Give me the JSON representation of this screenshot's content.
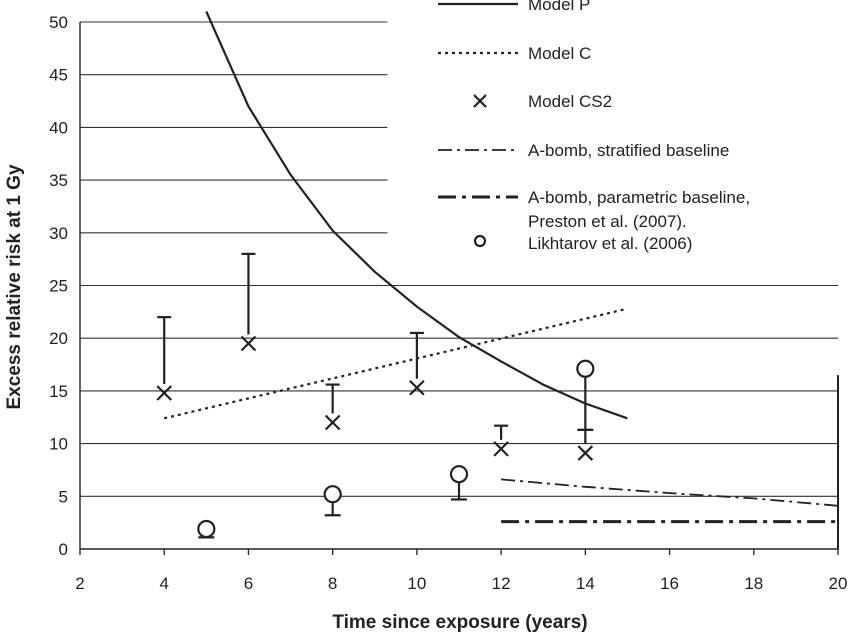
{
  "chart_data": {
    "type": "line",
    "xlabel": "Time since exposure (years)",
    "ylabel": "Excess relative risk at 1 Gy",
    "xlim": [
      2,
      20
    ],
    "ylim": [
      0,
      50
    ],
    "x_ticks": [
      2,
      4,
      6,
      8,
      10,
      12,
      14,
      16,
      18,
      20
    ],
    "y_ticks": [
      0,
      5,
      10,
      15,
      20,
      25,
      30,
      35,
      40,
      45,
      50
    ],
    "grid": "horizontal",
    "legend_position": "top-right",
    "series": [
      {
        "name": "Model P",
        "style": "solid",
        "points": [
          [
            5,
            51
          ],
          [
            6,
            42
          ],
          [
            7,
            35.5
          ],
          [
            8,
            30.2
          ],
          [
            9,
            26.3
          ],
          [
            10,
            23
          ],
          [
            11,
            20.1
          ],
          [
            12,
            17.8
          ],
          [
            13,
            15.6
          ],
          [
            14,
            13.8
          ],
          [
            15,
            12.4
          ]
        ]
      },
      {
        "name": "Model C",
        "style": "dotted",
        "points": [
          [
            4,
            12.4
          ],
          [
            15,
            22.8
          ]
        ]
      },
      {
        "name": "Model CS2",
        "style": "x-marker",
        "points": [
          [
            4,
            14.8
          ],
          [
            6,
            19.5
          ],
          [
            8,
            12
          ],
          [
            10,
            15.3
          ],
          [
            12,
            9.5
          ],
          [
            14,
            9.1
          ]
        ],
        "upper": [
          22,
          28,
          15.6,
          20.5,
          11.7,
          11.3
        ]
      },
      {
        "name": "A-bomb, stratified baseline",
        "style": "dash-dot-thin",
        "points": [
          [
            12,
            6.6
          ],
          [
            14,
            5.9
          ],
          [
            16,
            5.3
          ],
          [
            18,
            4.8
          ],
          [
            20,
            4.1
          ]
        ]
      },
      {
        "name": "A-bomb, parametric baseline, Preston et al. (2007).",
        "legend_lines": [
          "A-bomb, parametric baseline,",
          "Preston et al. (2007)."
        ],
        "style": "dash-dot-thick",
        "points": [
          [
            12,
            2.6
          ],
          [
            20,
            2.6
          ]
        ]
      },
      {
        "name": "Likhtarov et al. (2006)",
        "style": "circle-marker",
        "points": [
          [
            5,
            1.9
          ],
          [
            8,
            5.2
          ],
          [
            11,
            7.1
          ],
          [
            14,
            17.1
          ]
        ],
        "lower": [
          1.1,
          3.2,
          4.7,
          11.3
        ]
      }
    ]
  }
}
